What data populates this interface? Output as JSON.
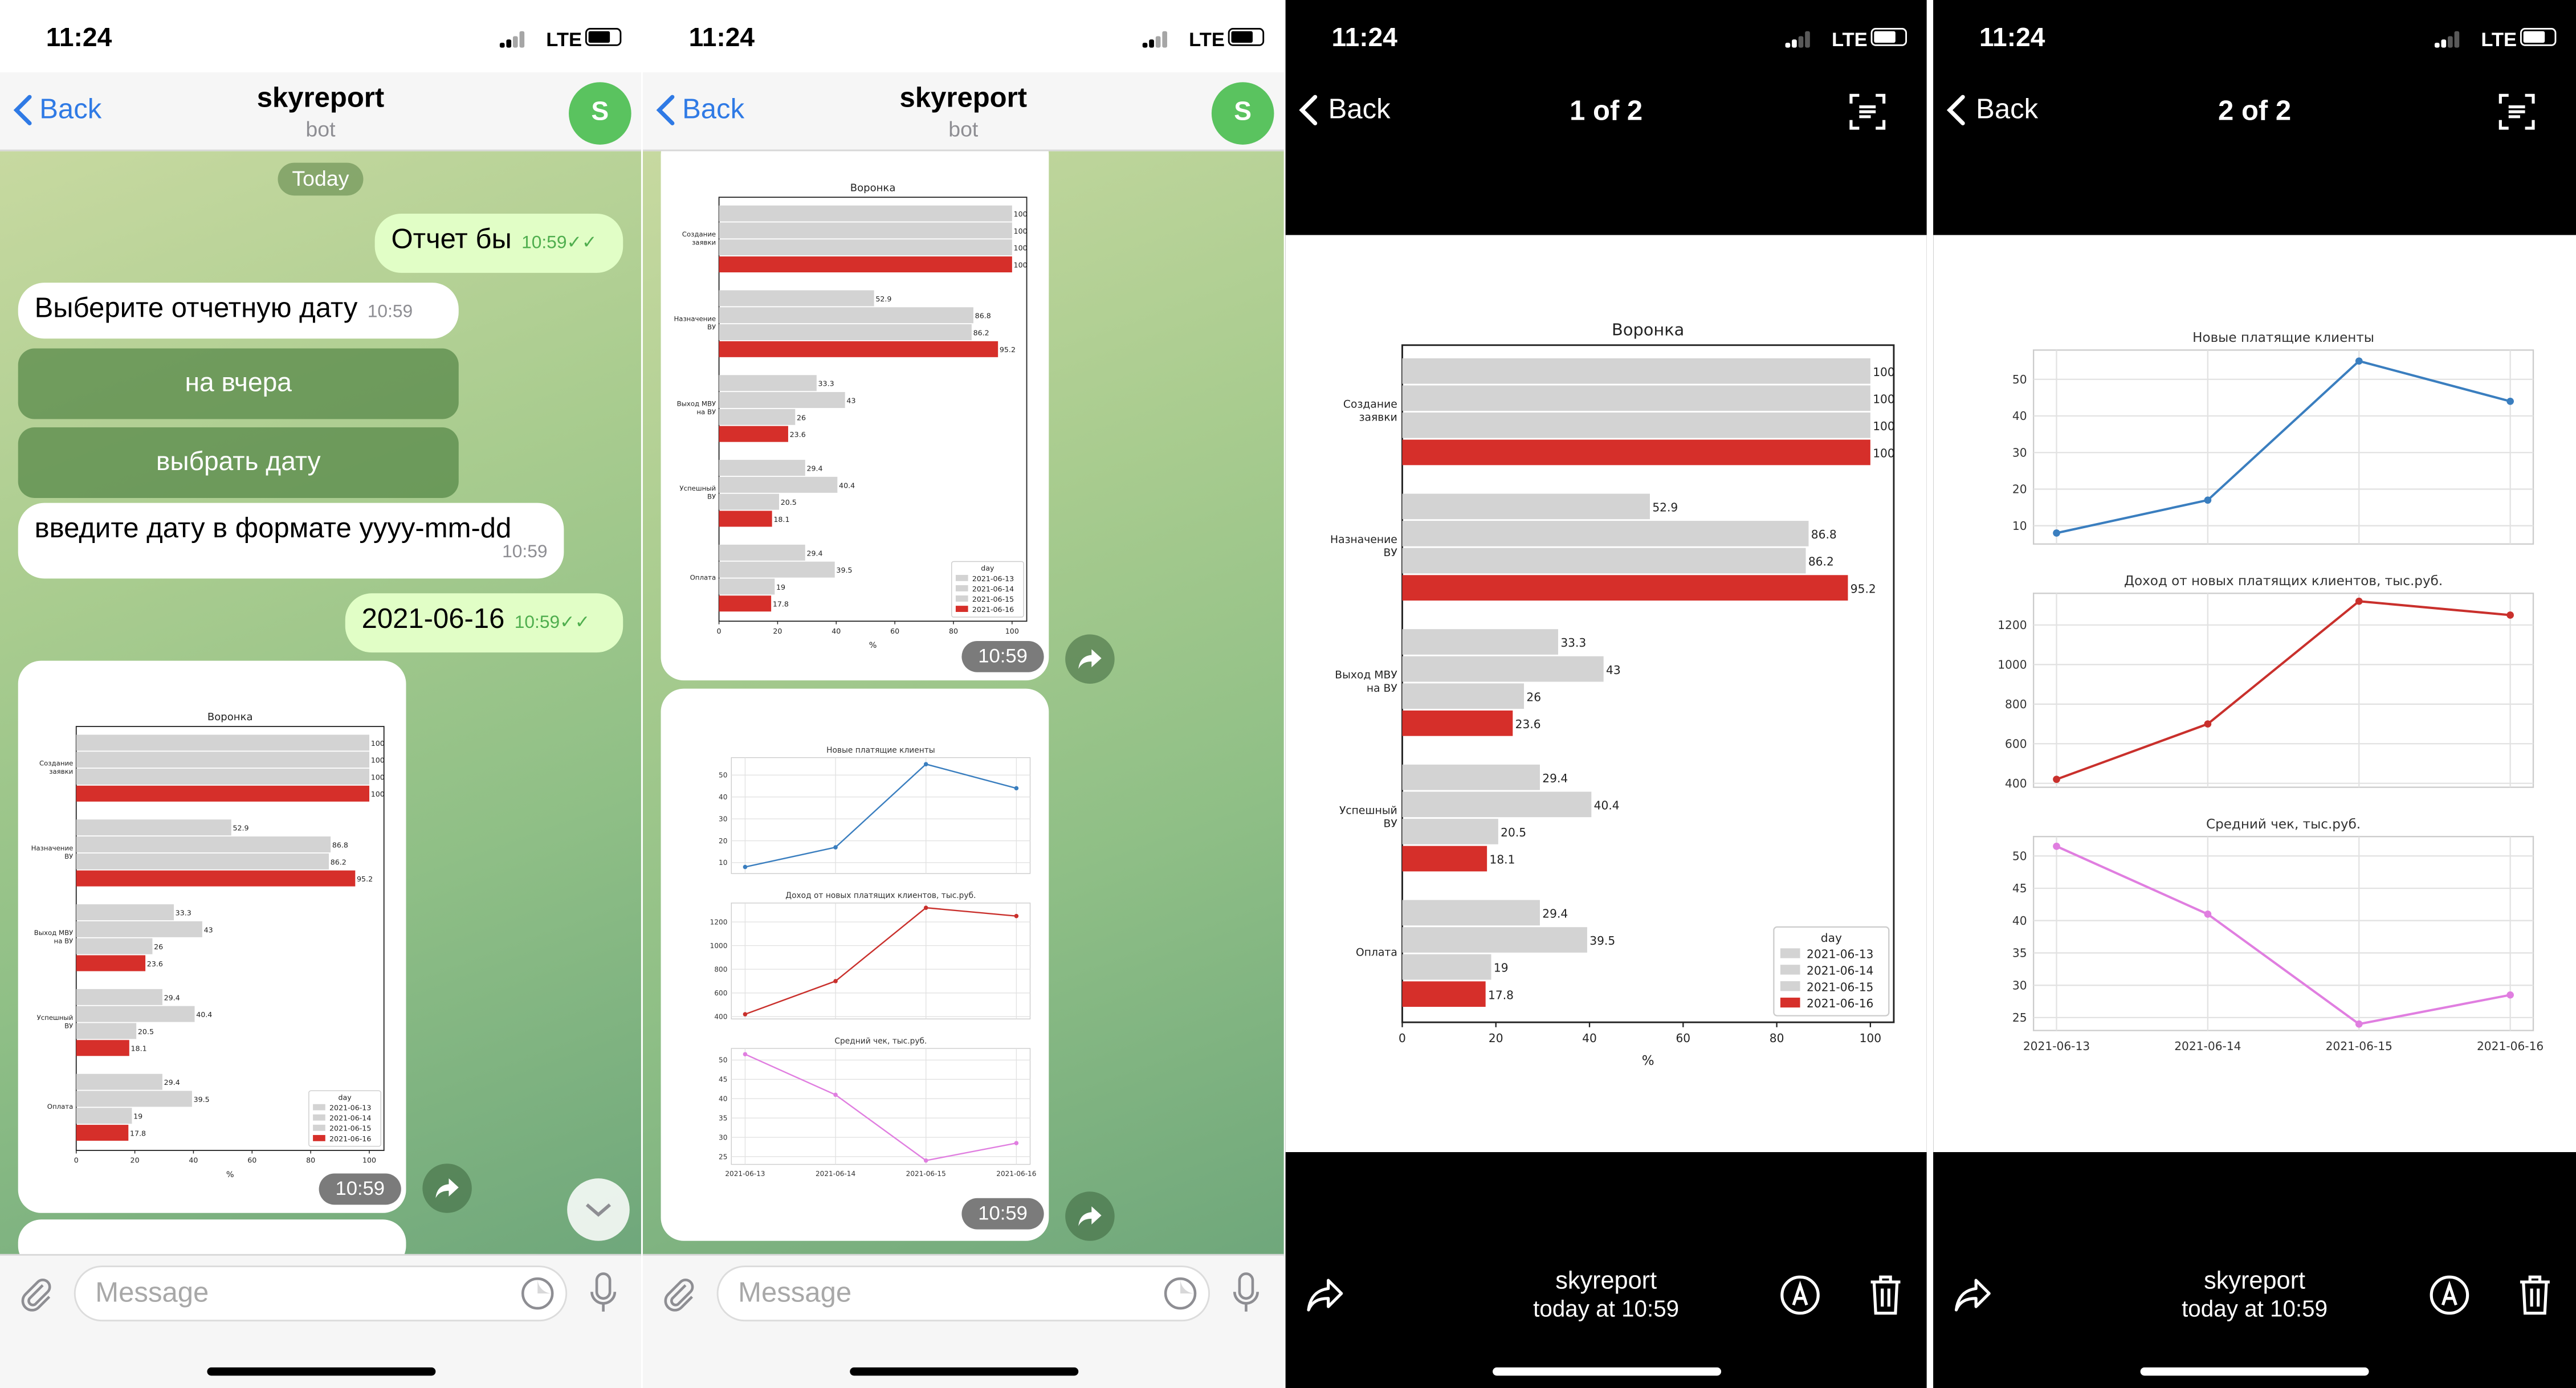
{
  "status": {
    "time": "11:24",
    "network": "LTE"
  },
  "chat": {
    "back_label": "Back",
    "title": "skyreport",
    "subtitle": "bot",
    "avatar_letter": "S",
    "date_separator": "Today",
    "messages": [
      {
        "dir": "out",
        "text": "Отчет бы",
        "time": "10:59"
      },
      {
        "dir": "in",
        "text": "Выберите отчетную дату",
        "time": "10:59"
      },
      {
        "dir": "in",
        "text": "введите дату в формате yyyy-mm-dd",
        "time": "10:59"
      },
      {
        "dir": "out",
        "text": "2021-06-16",
        "time": "10:59"
      }
    ],
    "keyboard_buttons": [
      "на вчера",
      "выбрать дату"
    ],
    "photo_time": "10:59",
    "input_placeholder": "Message"
  },
  "viewer": {
    "back_label": "Back",
    "page1_title": "1 of 2",
    "page2_title": "2 of 2",
    "sender": "skyreport",
    "date": "today at 10:59"
  },
  "colors": {
    "red": "#d62f2a",
    "gray": "#d3d3d3",
    "blue": "#3a7ebf",
    "redline": "#c9302c",
    "violet": "#e07ee0",
    "accent": "#2f7ae5"
  },
  "chart_data": [
    {
      "type": "bar",
      "title": "Воронка",
      "xlabel": "%",
      "categories": [
        "Создание заявки",
        "Назначение ВУ",
        "Выход МВУ на ВУ",
        "Успешный ВУ",
        "Оплата"
      ],
      "series": [
        {
          "name": "2021-06-13",
          "values": [
            100,
            52.9,
            33.3,
            29.4,
            29.4
          ]
        },
        {
          "name": "2021-06-14",
          "values": [
            100,
            86.8,
            43,
            40.4,
            39.5
          ]
        },
        {
          "name": "2021-06-15",
          "values": [
            100,
            86.2,
            26,
            20.5,
            19
          ]
        },
        {
          "name": "2021-06-16",
          "values": [
            100,
            95.2,
            23.6,
            18.1,
            17.8
          ]
        }
      ],
      "xlim": [
        0,
        105
      ],
      "xticks": [
        0,
        20,
        40,
        60,
        80,
        100
      ],
      "legend_title": "day",
      "legend_position": "bottom-right"
    },
    {
      "type": "line",
      "title": "Новые платящие клиенты",
      "x": [
        "2021-06-13",
        "2021-06-14",
        "2021-06-15",
        "2021-06-16"
      ],
      "values": [
        8,
        17,
        55,
        44
      ],
      "ylim": [
        5,
        58
      ],
      "yticks": [
        10,
        20,
        30,
        40,
        50
      ],
      "grid": true
    },
    {
      "type": "line",
      "title": "Доход от новых платящих клиентов, тыс.руб.",
      "x": [
        "2021-06-13",
        "2021-06-14",
        "2021-06-15",
        "2021-06-16"
      ],
      "values": [
        420,
        700,
        1320,
        1250
      ],
      "ylim": [
        380,
        1360
      ],
      "yticks": [
        400,
        600,
        800,
        1000,
        1200
      ],
      "grid": true
    },
    {
      "type": "line",
      "title": "Средний чек, тыс.руб.",
      "x": [
        "2021-06-13",
        "2021-06-14",
        "2021-06-15",
        "2021-06-16"
      ],
      "values": [
        51.5,
        41,
        24,
        28.5
      ],
      "ylim": [
        23,
        53
      ],
      "yticks": [
        25,
        30,
        35,
        40,
        45,
        50
      ],
      "grid": true
    }
  ]
}
